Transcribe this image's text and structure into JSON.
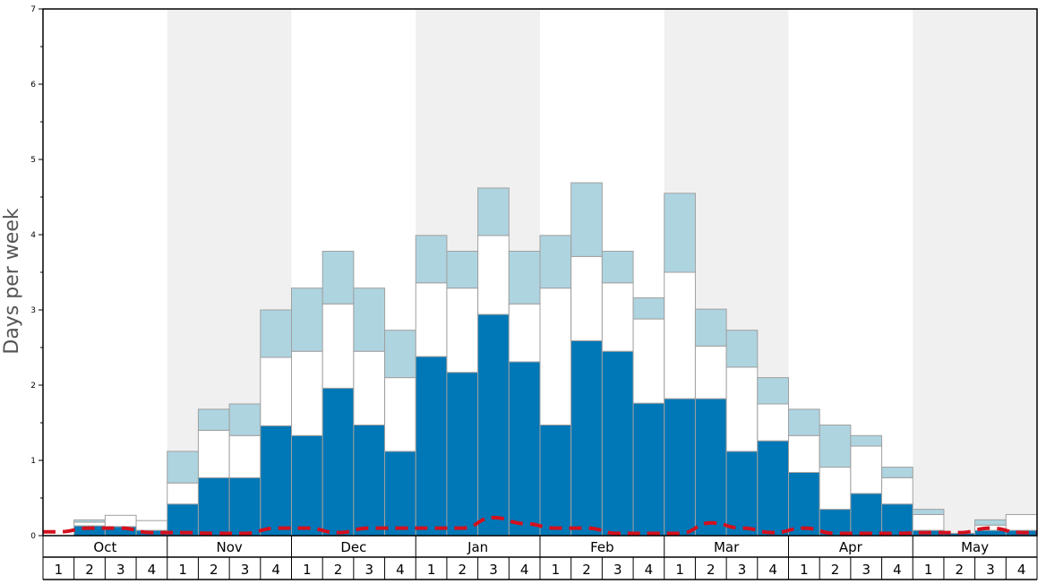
{
  "chart_data": {
    "type": "bar",
    "stacked": true,
    "ylabel": "Days per week",
    "ylim": [
      0,
      7
    ],
    "yticks": [
      "0",
      "1",
      "2",
      "3",
      "4",
      "5",
      "6",
      "7"
    ],
    "months": [
      "Oct",
      "Nov",
      "Dec",
      "Jan",
      "Feb",
      "Mar",
      "Apr",
      "May"
    ],
    "week_labels": [
      "1",
      "2",
      "3",
      "4",
      "1",
      "2",
      "3",
      "4",
      "1",
      "2",
      "3",
      "4",
      "1",
      "2",
      "3",
      "4",
      "1",
      "2",
      "3",
      "4",
      "1",
      "2",
      "3",
      "4",
      "1",
      "2",
      "3",
      "4",
      "1",
      "2",
      "3",
      "4"
    ],
    "shaded_months": [
      "Nov",
      "Jan",
      "Mar",
      "May"
    ],
    "series": [
      {
        "color": "#0077b6",
        "values": [
          0,
          0.13,
          0.12,
          0.07,
          0.42,
          0.77,
          0.77,
          1.46,
          1.33,
          1.96,
          1.47,
          1.12,
          2.38,
          2.17,
          2.94,
          2.31,
          1.47,
          2.59,
          2.45,
          1.76,
          1.82,
          1.82,
          1.12,
          1.26,
          0.84,
          0.35,
          0.56,
          0.42,
          0.07,
          0.03,
          0.07,
          0.07
        ]
      },
      {
        "color": "#ffffff",
        "values": [
          0,
          0.05,
          0.15,
          0.13,
          0.28,
          0.63,
          0.56,
          0.91,
          1.12,
          1.12,
          0.98,
          0.98,
          0.98,
          1.12,
          1.05,
          0.77,
          1.82,
          1.12,
          0.91,
          1.12,
          1.68,
          0.7,
          1.12,
          0.49,
          0.49,
          0.56,
          0.63,
          0.35,
          0.21,
          0.0,
          0.07,
          0.21
        ]
      },
      {
        "color": "#aed4e0",
        "values": [
          0,
          0.03,
          0,
          0,
          0.42,
          0.28,
          0.42,
          0.63,
          0.84,
          0.7,
          0.84,
          0.63,
          0.63,
          0.49,
          0.63,
          0.7,
          0.7,
          0.98,
          0.42,
          0.28,
          1.05,
          0.49,
          0.49,
          0.35,
          0.35,
          0.56,
          0.14,
          0.14,
          0.07,
          0.0,
          0.07,
          0.0
        ]
      }
    ],
    "dashed_line": {
      "color": "#d4101e",
      "values": [
        0.05,
        0.1,
        0.1,
        0.04,
        0.04,
        0.03,
        0.03,
        0.1,
        0.1,
        0.04,
        0.1,
        0.1,
        0.1,
        0.1,
        0.24,
        0.16,
        0.1,
        0.1,
        0.03,
        0.03,
        0.03,
        0.17,
        0.1,
        0.04,
        0.1,
        0.03,
        0.03,
        0.03,
        0.04,
        0.04,
        0.1,
        0.04
      ]
    }
  }
}
